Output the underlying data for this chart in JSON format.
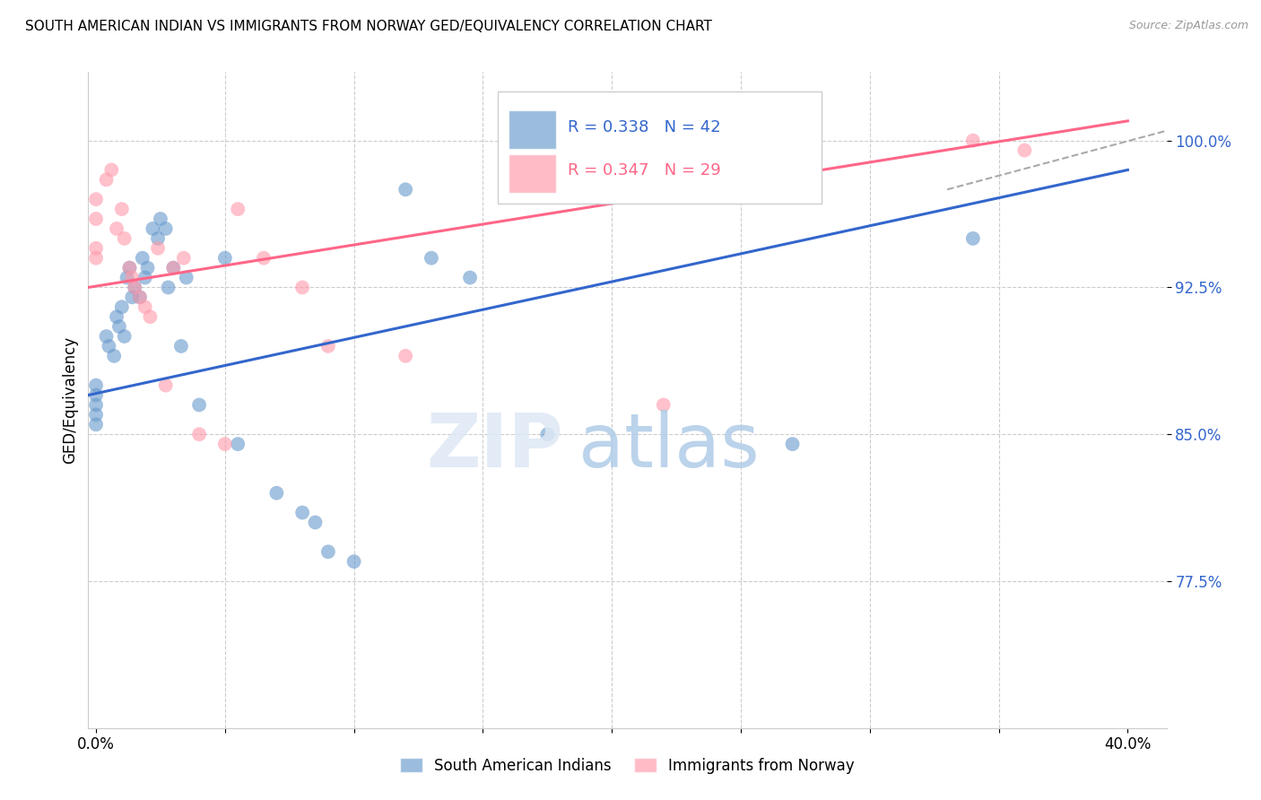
{
  "title": "SOUTH AMERICAN INDIAN VS IMMIGRANTS FROM NORWAY GED/EQUIVALENCY CORRELATION CHART",
  "source": "Source: ZipAtlas.com",
  "ylabel": "GED/Equivalency",
  "y_ticks": [
    77.5,
    85.0,
    92.5,
    100.0
  ],
  "y_tick_labels": [
    "77.5%",
    "85.0%",
    "92.5%",
    "100.0%"
  ],
  "ylim": [
    70.0,
    103.5
  ],
  "xlim": [
    -0.003,
    0.415
  ],
  "legend_blue_r": "0.338",
  "legend_blue_n": "42",
  "legend_pink_r": "0.347",
  "legend_pink_n": "29",
  "legend_label_blue": "South American Indians",
  "legend_label_pink": "Immigrants from Norway",
  "blue_color": "#6699cc",
  "pink_color": "#ff99aa",
  "blue_line_color": "#3366cc",
  "pink_line_color": "#ff6688",
  "blue_points_x": [
    0.0,
    0.0,
    0.0,
    0.0,
    0.0,
    0.004,
    0.005,
    0.007,
    0.008,
    0.009,
    0.01,
    0.011,
    0.012,
    0.013,
    0.014,
    0.015,
    0.017,
    0.018,
    0.019,
    0.02,
    0.022,
    0.024,
    0.025,
    0.027,
    0.028,
    0.03,
    0.033,
    0.035,
    0.04,
    0.05,
    0.055,
    0.07,
    0.08,
    0.085,
    0.09,
    0.1,
    0.12,
    0.13,
    0.145,
    0.175,
    0.27,
    0.34
  ],
  "blue_points_y": [
    87.5,
    87.0,
    86.5,
    86.0,
    85.5,
    90.0,
    89.5,
    89.0,
    91.0,
    90.5,
    91.5,
    90.0,
    93.0,
    93.5,
    92.0,
    92.5,
    92.0,
    94.0,
    93.0,
    93.5,
    95.5,
    95.0,
    96.0,
    95.5,
    92.5,
    93.5,
    89.5,
    93.0,
    86.5,
    94.0,
    84.5,
    82.0,
    81.0,
    80.5,
    79.0,
    78.5,
    97.5,
    94.0,
    93.0,
    85.0,
    84.5,
    95.0
  ],
  "pink_points_x": [
    0.0,
    0.0,
    0.0,
    0.0,
    0.004,
    0.006,
    0.008,
    0.01,
    0.011,
    0.013,
    0.014,
    0.015,
    0.017,
    0.019,
    0.021,
    0.024,
    0.027,
    0.03,
    0.034,
    0.04,
    0.05,
    0.055,
    0.065,
    0.08,
    0.09,
    0.12,
    0.22,
    0.34,
    0.36
  ],
  "pink_points_y": [
    97.0,
    96.0,
    94.5,
    94.0,
    98.0,
    98.5,
    95.5,
    96.5,
    95.0,
    93.5,
    93.0,
    92.5,
    92.0,
    91.5,
    91.0,
    94.5,
    87.5,
    93.5,
    94.0,
    85.0,
    84.5,
    96.5,
    94.0,
    92.5,
    89.5,
    89.0,
    86.5,
    100.0,
    99.5
  ],
  "blue_regression": [
    87.0,
    98.5
  ],
  "pink_regression": [
    92.5,
    101.0
  ],
  "dashed_line_x": [
    0.33,
    0.415
  ],
  "dashed_line_y": [
    97.5,
    100.5
  ],
  "background_color": "#ffffff",
  "grid_color": "#cccccc",
  "x_tick_positions": [
    0.0,
    0.05,
    0.1,
    0.15,
    0.2,
    0.25,
    0.3,
    0.35,
    0.4
  ]
}
